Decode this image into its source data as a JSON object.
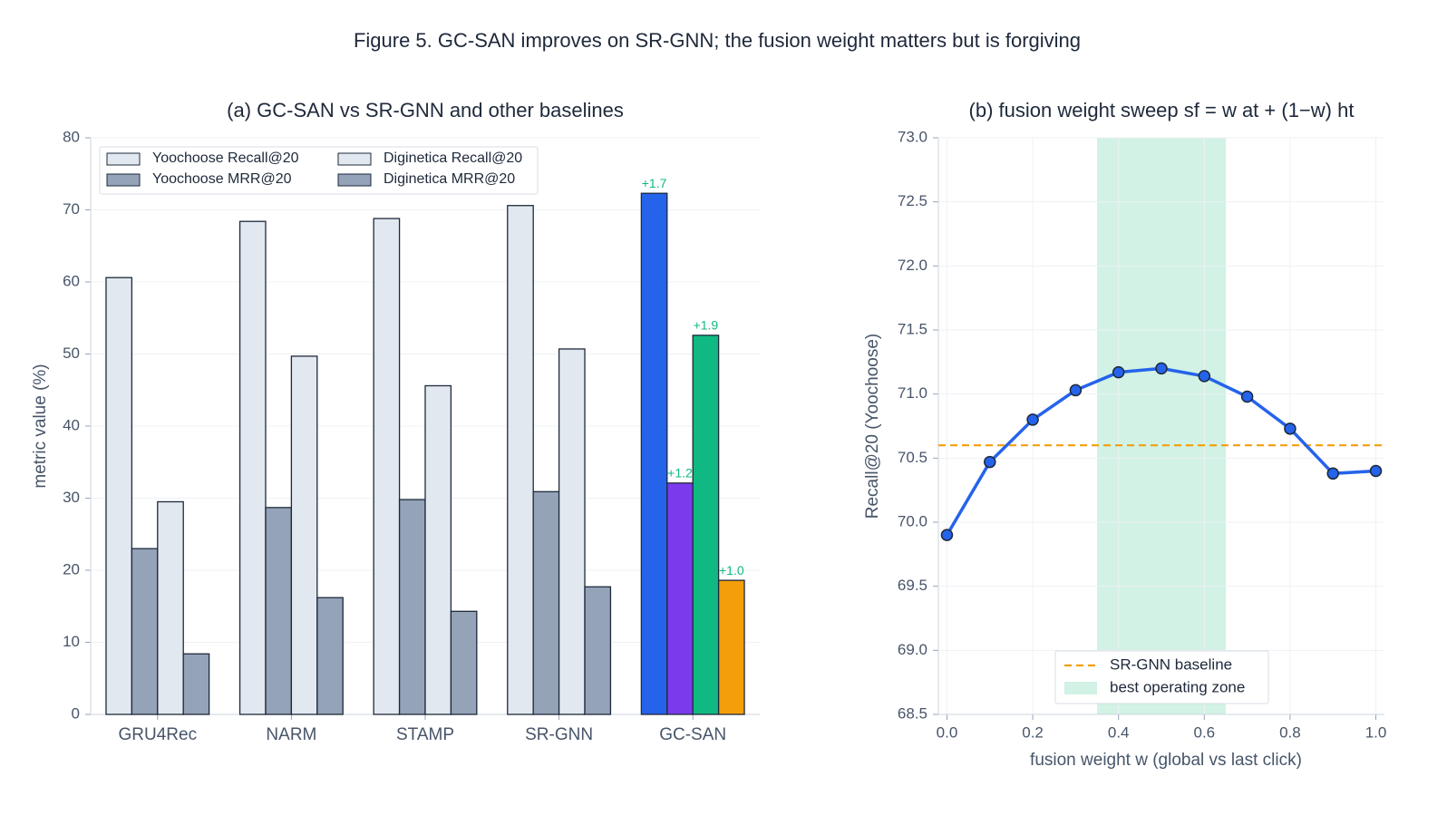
{
  "title": "Figure 5. GC-SAN improves on SR-GNN; the fusion weight matters but is forgiving",
  "chart_data": [
    {
      "type": "bar",
      "title": "(a) GC-SAN vs SR-GNN and other baselines",
      "ylabel": "metric value (%)",
      "categories": [
        "GRU4Rec",
        "NARM",
        "STAMP",
        "SR-GNN",
        "GC-SAN"
      ],
      "series": [
        {
          "name": "Yoochoose Recall@20",
          "color": "#e2e8f0",
          "colors": [
            "#e2e8f0",
            "#e2e8f0",
            "#e2e8f0",
            "#e2e8f0",
            "#2563eb"
          ],
          "values": [
            60.6,
            68.4,
            68.8,
            70.6,
            72.3
          ]
        },
        {
          "name": "Yoochoose MRR@20",
          "color": "#94a3b8",
          "colors": [
            "#94a3b8",
            "#94a3b8",
            "#94a3b8",
            "#94a3b8",
            "#7c3aed"
          ],
          "values": [
            23.0,
            28.7,
            29.8,
            30.9,
            32.1
          ]
        },
        {
          "name": "Diginetica Recall@20",
          "color": "#e2e8f0",
          "colors": [
            "#e2e8f0",
            "#e2e8f0",
            "#e2e8f0",
            "#e2e8f0",
            "#10b981"
          ],
          "values": [
            29.5,
            49.7,
            45.6,
            50.7,
            52.6
          ]
        },
        {
          "name": "Diginetica MRR@20",
          "color": "#94a3b8",
          "colors": [
            "#94a3b8",
            "#94a3b8",
            "#94a3b8",
            "#94a3b8",
            "#f59e0b"
          ],
          "values": [
            8.4,
            16.2,
            14.3,
            17.7,
            18.6
          ]
        }
      ],
      "annotations": [
        {
          "text": "+1.7",
          "category": "GC-SAN",
          "series": "Yoochoose Recall@20"
        },
        {
          "text": "+1.2",
          "category": "GC-SAN",
          "series": "Yoochoose MRR@20"
        },
        {
          "text": "+1.9",
          "category": "GC-SAN",
          "series": "Diginetica Recall@20"
        },
        {
          "text": "+1.0",
          "category": "GC-SAN",
          "series": "Diginetica MRR@20"
        }
      ],
      "annotation_color": "#10b981",
      "ylim": [
        0,
        80
      ],
      "yticks": [
        0,
        10,
        20,
        30,
        40,
        50,
        60,
        70,
        80
      ],
      "grid": true,
      "legend": "upper left"
    },
    {
      "type": "line",
      "title": "(b) fusion weight sweep sf = w at + (1−w) ht",
      "xlabel": "fusion weight w  (global vs last click)",
      "ylabel": "Recall@20 (Yoochoose)",
      "x": [
        0,
        0.1,
        0.2,
        0.3,
        0.4,
        0.5,
        0.6,
        0.7,
        0.8,
        0.9,
        1.0
      ],
      "series": [
        {
          "name": "Recall@20",
          "color": "#2563eb",
          "values": [
            69.9,
            70.47,
            70.8,
            71.03,
            71.17,
            71.2,
            71.14,
            70.98,
            70.73,
            70.38,
            70.4
          ]
        }
      ],
      "hline": {
        "name": "SR-GNN baseline",
        "value": 70.6,
        "color": "#f59e0b"
      },
      "span": {
        "name": "best operating zone",
        "range": [
          0.35,
          0.65
        ],
        "color": "#d1f2e4"
      },
      "xlim": [
        -0.02,
        1.02
      ],
      "xticks": [
        {
          "value": 0,
          "label": "0.0"
        },
        0.2,
        0.4,
        0.6,
        0.8,
        {
          "value": 1.0,
          "label": "1.0"
        }
      ],
      "ylim": [
        68.5,
        73.0
      ],
      "yticks": [
        68.5,
        {
          "value": 69,
          "label": "69.0"
        },
        69.5,
        {
          "value": 70,
          "label": "70.0"
        },
        70.5,
        {
          "value": 71,
          "label": "71.0"
        },
        71.5,
        {
          "value": 72,
          "label": "72.0"
        },
        72.5,
        {
          "value": 73,
          "label": "73.0"
        }
      ],
      "grid": true,
      "legend": "lower center"
    }
  ]
}
